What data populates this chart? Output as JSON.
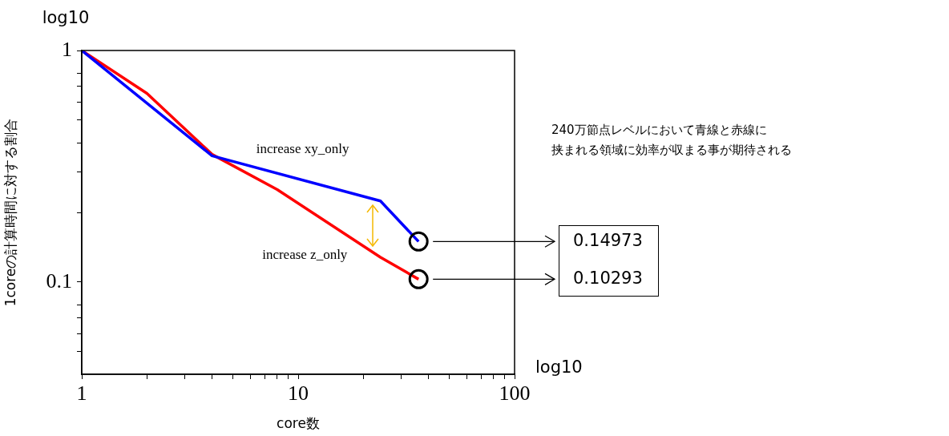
{
  "chart_data": {
    "type": "line",
    "xlabel": "core数",
    "ylabel": "1coreの計算時間に対する割合",
    "log": "xy",
    "grid": false,
    "legend": false,
    "xlim": [
      1,
      100
    ],
    "ylim": [
      0.04,
      1
    ],
    "xticks": [
      1,
      {
        "value": 2,
        "label": null
      },
      {
        "value": 3,
        "label": null
      },
      {
        "value": 4,
        "label": null
      },
      {
        "value": 5,
        "label": null
      },
      {
        "value": 6,
        "label": null
      },
      {
        "value": 7,
        "label": null
      },
      {
        "value": 8,
        "label": null
      },
      {
        "value": 9,
        "label": null
      },
      10,
      {
        "value": 20,
        "label": null
      },
      {
        "value": 30,
        "label": null
      },
      {
        "value": 40,
        "label": null
      },
      {
        "value": 50,
        "label": null
      },
      {
        "value": 60,
        "label": null
      },
      {
        "value": 70,
        "label": null
      },
      {
        "value": 80,
        "label": null
      },
      {
        "value": 90,
        "label": null
      },
      100
    ],
    "yticks": [
      {
        "value": 0.05,
        "label": null
      },
      {
        "value": 0.06,
        "label": null
      },
      {
        "value": 0.07,
        "label": null
      },
      {
        "value": 0.08,
        "label": null
      },
      0.1,
      {
        "value": 0.2,
        "label": null
      },
      {
        "value": 0.3,
        "label": null
      },
      {
        "value": 0.4,
        "label": null
      },
      {
        "value": 0.5,
        "label": null
      },
      {
        "value": 0.6,
        "label": null
      },
      {
        "value": 0.7,
        "label": null
      },
      {
        "value": 0.8,
        "label": null
      },
      1
    ],
    "series": [
      {
        "name": "increase xy_only",
        "color": "#0000ff",
        "x": [
          1,
          4,
          24,
          36
        ],
        "values": [
          1,
          0.351,
          0.224,
          0.14973
        ],
        "value_labels": [
          null,
          null,
          null,
          "0.14973"
        ]
      },
      {
        "name": "increase z_only",
        "color": "#ff0000",
        "x": [
          1,
          2,
          4,
          8,
          24,
          36
        ],
        "values": [
          1,
          0.653,
          0.356,
          0.251,
          0.128,
          0.10293
        ],
        "value_labels": [
          null,
          null,
          null,
          null,
          null,
          "0.10293"
        ]
      }
    ],
    "annotations": [
      "log10",
      "log10",
      "240万節点レベルにおいて青線と赤線に",
      "挟まれる領域に効率が収まる事が期待される"
    ]
  }
}
